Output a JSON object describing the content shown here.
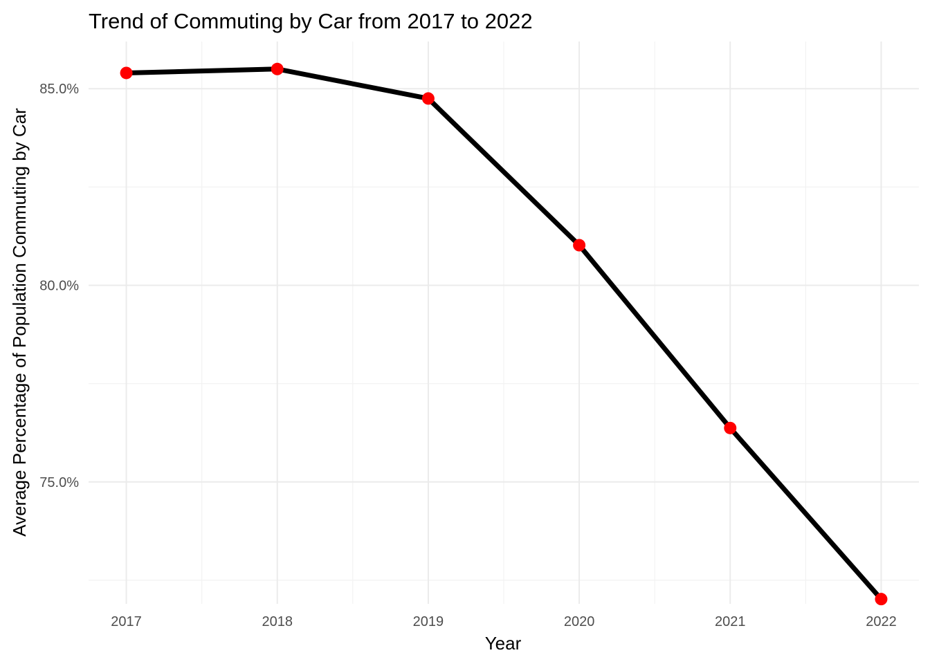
{
  "chart_data": {
    "type": "line",
    "title": "Trend of Commuting by Car from 2017 to 2022",
    "xlabel": "Year",
    "ylabel": "Average Percentage of Population Commuting by Car",
    "x": [
      2017,
      2018,
      2019,
      2020,
      2021,
      2022
    ],
    "x_tick_labels": [
      "2017",
      "2018",
      "2019",
      "2020",
      "2021",
      "2022"
    ],
    "y_ticks": [
      75,
      80,
      85
    ],
    "y_tick_labels": [
      "75.0%",
      "80.0%",
      "85.0%"
    ],
    "y_minor_ticks": [
      72.5,
      77.5,
      82.5
    ],
    "ylim": [
      71.9,
      86.2
    ],
    "xlim": [
      2016.75,
      2022.25
    ],
    "series": [
      {
        "values": [
          85.4,
          85.5,
          84.75,
          81.02,
          76.37,
          72.02
        ]
      }
    ],
    "line_color": "#000000",
    "point_color": "#ff0000",
    "grid": true,
    "legend": "none"
  }
}
